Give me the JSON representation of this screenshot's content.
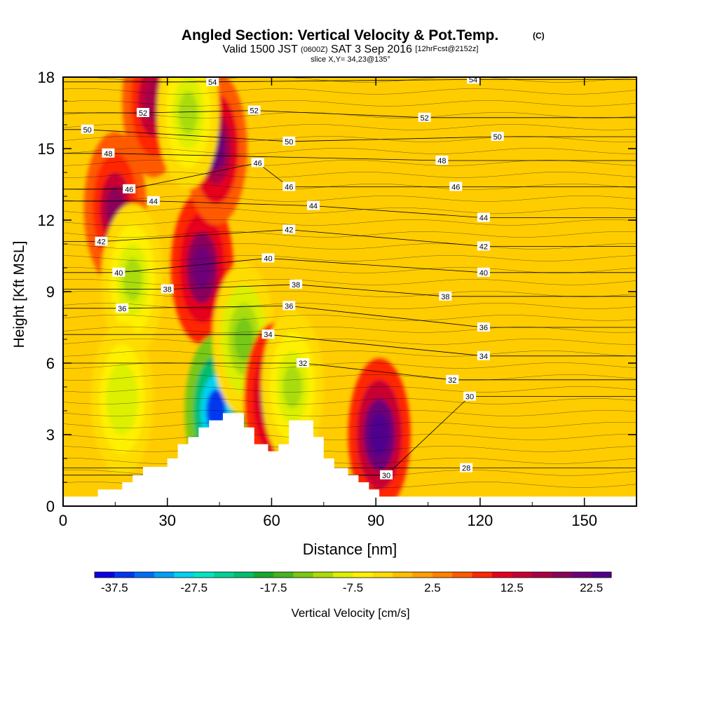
{
  "chart_data": {
    "type": "heatmap",
    "title": "Angled Section: Vertical Velocity & Pot.Temp.",
    "title_mark": "(C)",
    "subtitle_parts": [
      "Valid 1500 JST",
      "(0600Z)",
      "SAT 3 Sep 2016",
      "[12hrFcst@2152z]"
    ],
    "slice_text": "slice X,Y= 34,23@135°",
    "xlabel": "Distance [nm]",
    "ylabel": "Height [Kft MSL]",
    "xlim": [
      0,
      165
    ],
    "ylim": [
      0,
      18
    ],
    "x_ticks": [
      0,
      30,
      60,
      90,
      120,
      150
    ],
    "y_ticks": [
      0,
      3,
      6,
      9,
      12,
      15,
      18
    ],
    "colorbar": {
      "label": "Vertical Velocity [cm/s]",
      "range": [
        -40,
        25
      ],
      "step": 2.5,
      "tick_values": [
        -37.5,
        -27.5,
        -17.5,
        -7.5,
        2.5,
        12.5,
        22.5
      ],
      "tick_labels": [
        "-37.5",
        "-27.5",
        "-17.5",
        "-7.5",
        "2.5",
        "12.5",
        "22.5"
      ],
      "colors": [
        "#0a00e6",
        "#0037f0",
        "#006ef5",
        "#00a0f5",
        "#00d2f0",
        "#00e6c3",
        "#00d296",
        "#00be6e",
        "#14aa28",
        "#46b41e",
        "#78c814",
        "#aadc0a",
        "#dcf000",
        "#fff000",
        "#ffdc00",
        "#ffbe00",
        "#ffa000",
        "#ff8200",
        "#ff5a00",
        "#ff2800",
        "#e6001e",
        "#c80032",
        "#aa0046",
        "#8c005a",
        "#6e0078",
        "#50008c"
      ]
    },
    "terrain": [
      [
        0,
        0.4
      ],
      [
        10,
        0.4
      ],
      [
        10,
        0.7
      ],
      [
        17,
        0.7
      ],
      [
        17,
        1.0
      ],
      [
        20,
        1.0
      ],
      [
        20,
        1.3
      ],
      [
        23,
        1.3
      ],
      [
        23,
        1.65
      ],
      [
        30,
        1.65
      ],
      [
        30,
        2.0
      ],
      [
        33,
        2.0
      ],
      [
        33,
        2.6
      ],
      [
        36,
        2.6
      ],
      [
        36,
        2.9
      ],
      [
        39,
        2.9
      ],
      [
        39,
        3.3
      ],
      [
        42,
        3.3
      ],
      [
        42,
        3.6
      ],
      [
        46,
        3.6
      ],
      [
        46,
        3.9
      ],
      [
        52,
        3.9
      ],
      [
        52,
        3.3
      ],
      [
        55,
        3.3
      ],
      [
        55,
        2.6
      ],
      [
        59,
        2.6
      ],
      [
        59,
        2.3
      ],
      [
        62,
        2.3
      ],
      [
        62,
        2.6
      ],
      [
        65,
        2.6
      ],
      [
        65,
        3.6
      ],
      [
        72,
        3.6
      ],
      [
        72,
        2.9
      ],
      [
        75,
        2.9
      ],
      [
        75,
        2.0
      ],
      [
        78,
        2.0
      ],
      [
        78,
        1.6
      ],
      [
        82,
        1.6
      ],
      [
        82,
        1.3
      ],
      [
        85,
        1.3
      ],
      [
        85,
        1.0
      ],
      [
        88,
        1.0
      ],
      [
        88,
        0.7
      ],
      [
        91,
        0.7
      ],
      [
        91,
        0.4
      ],
      [
        165,
        0.4
      ]
    ],
    "velocity_features": [
      {
        "x": 15,
        "y": 12.5,
        "value": 18
      },
      {
        "x": 20,
        "y": 9.5,
        "value": -12
      },
      {
        "x": 17,
        "y": 4.5,
        "value": -10
      },
      {
        "x": 40,
        "y": 10,
        "value": 22
      },
      {
        "x": 44,
        "y": 15,
        "value": 20
      },
      {
        "x": 44,
        "y": 4,
        "value": -37
      },
      {
        "x": 52,
        "y": 7,
        "value": -14
      },
      {
        "x": 61,
        "y": 4.5,
        "value": 22
      },
      {
        "x": 66,
        "y": 5,
        "value": -12
      },
      {
        "x": 91,
        "y": 3,
        "value": 25
      },
      {
        "x": 26,
        "y": 17,
        "value": 16
      },
      {
        "x": 36,
        "y": 16.5,
        "value": -12
      }
    ],
    "isotherm_labels": [
      {
        "text": "54",
        "x": 43,
        "y": 17.8
      },
      {
        "text": "54",
        "x": 118,
        "y": 17.9
      },
      {
        "text": "52",
        "x": 23,
        "y": 16.5
      },
      {
        "text": "52",
        "x": 55,
        "y": 16.6
      },
      {
        "text": "52",
        "x": 104,
        "y": 16.3
      },
      {
        "text": "50",
        "x": 7,
        "y": 15.8
      },
      {
        "text": "50",
        "x": 65,
        "y": 15.3
      },
      {
        "text": "50",
        "x": 125,
        "y": 15.5
      },
      {
        "text": "48",
        "x": 13,
        "y": 14.8
      },
      {
        "text": "48",
        "x": 109,
        "y": 14.5
      },
      {
        "text": "46",
        "x": 19,
        "y": 13.3
      },
      {
        "text": "46",
        "x": 56,
        "y": 14.4
      },
      {
        "text": "46",
        "x": 65,
        "y": 13.4
      },
      {
        "text": "46",
        "x": 113,
        "y": 13.4
      },
      {
        "text": "44",
        "x": 26,
        "y": 12.8
      },
      {
        "text": "44",
        "x": 72,
        "y": 12.6
      },
      {
        "text": "44",
        "x": 121,
        "y": 12.1
      },
      {
        "text": "42",
        "x": 11,
        "y": 11.1
      },
      {
        "text": "42",
        "x": 65,
        "y": 11.6
      },
      {
        "text": "42",
        "x": 121,
        "y": 10.9
      },
      {
        "text": "40",
        "x": 16,
        "y": 9.8
      },
      {
        "text": "40",
        "x": 59,
        "y": 10.4
      },
      {
        "text": "40",
        "x": 121,
        "y": 9.8
      },
      {
        "text": "38",
        "x": 30,
        "y": 9.1
      },
      {
        "text": "38",
        "x": 67,
        "y": 9.3
      },
      {
        "text": "38",
        "x": 110,
        "y": 8.8
      },
      {
        "text": "36",
        "x": 17,
        "y": 8.3
      },
      {
        "text": "36",
        "x": 65,
        "y": 8.4
      },
      {
        "text": "36",
        "x": 121,
        "y": 7.5
      },
      {
        "text": "34",
        "x": 59,
        "y": 7.2
      },
      {
        "text": "34",
        "x": 121,
        "y": 6.3
      },
      {
        "text": "32",
        "x": 69,
        "y": 6.0
      },
      {
        "text": "32",
        "x": 112,
        "y": 5.3
      },
      {
        "text": "30",
        "x": 117,
        "y": 4.6
      },
      {
        "text": "30",
        "x": 93,
        "y": 1.3
      },
      {
        "text": "28",
        "x": 116,
        "y": 1.6
      }
    ]
  }
}
